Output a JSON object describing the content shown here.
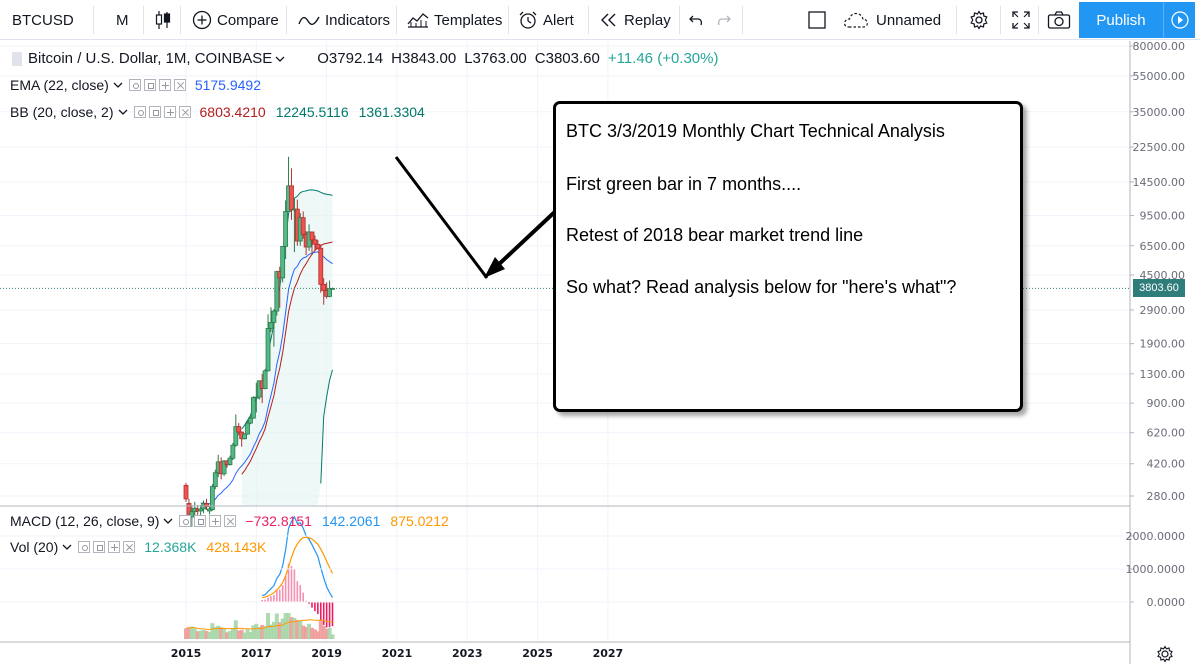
{
  "toolbar": {
    "symbol": "BTCUSD",
    "interval": "M",
    "compare_label": "Compare",
    "indicators_label": "Indicators",
    "templates_label": "Templates",
    "alert_label": "Alert",
    "replay_label": "Replay",
    "layout_name": "Unnamed",
    "publish_label": "Publish"
  },
  "legend": {
    "instrument": "Bitcoin / U.S. Dollar, 1M, COINBASE",
    "open": "O3792.14",
    "high": "H3843.00",
    "low": "L3763.00",
    "close": "C3803.60",
    "change": "+11.46 (+0.30%)",
    "ema": {
      "name": "EMA (22, close)",
      "value": "5175.9492",
      "color": "#2962ff"
    },
    "bb": {
      "name": "BB (20, close, 2)",
      "values": [
        "6803.4210",
        "12245.5116",
        "1361.3304"
      ],
      "colors": [
        "#b71c1c",
        "#00796b",
        "#00796b"
      ]
    },
    "macd": {
      "name": "MACD (12, 26, close, 9)",
      "values": [
        "−732.8151",
        "142.2061",
        "875.0212"
      ],
      "colors": [
        "#e91e63",
        "#2196f3",
        "#ff9800"
      ]
    },
    "vol": {
      "name": "Vol (20)",
      "values": [
        "12.368K",
        "428.143K"
      ],
      "colors": [
        "#26a69a",
        "#ff9800"
      ]
    }
  },
  "price_axis": {
    "labels": [
      "80000.00",
      "55000.00",
      "35000.00",
      "22500.00",
      "14500.00",
      "9500.00",
      "6500.00",
      "4500.00",
      "2900.00",
      "1900.00",
      "1300.00",
      "900.00",
      "620.00",
      "420.00",
      "280.00"
    ],
    "last_price": "3803.60"
  },
  "macd_axis": {
    "labels": [
      "2000.0000",
      "1000.0000",
      "0.0000"
    ]
  },
  "time_axis": {
    "labels": [
      "2015",
      "2017",
      "2019",
      "2021",
      "2023",
      "2025",
      "2027"
    ]
  },
  "annotation": {
    "lines": [
      "BTC 3/3/2019 Monthly Chart Technical Analysis",
      "First green bar in 7 months....",
      "Retest of 2018 bear market trend line",
      "So what?  Read analysis below for \"here's what\"?"
    ]
  },
  "colors": {
    "up": "#26a69a",
    "up_body": "#53b987",
    "down": "#ef5350",
    "accent": "#2196f3"
  },
  "chart_data": {
    "type": "candlestick",
    "title": "Bitcoin / U.S. Dollar, 1M, COINBASE",
    "x_range": [
      "2014-12",
      "2028-01"
    ],
    "y_scale": "log",
    "ylim": [
      230,
      95000
    ],
    "candles": [
      {
        "t": "2015-01",
        "o": 320,
        "h": 330,
        "l": 260,
        "c": 270
      },
      {
        "t": "2015-02",
        "o": 255,
        "h": 270,
        "l": 205,
        "c": 215
      },
      {
        "t": "2015-03",
        "o": 215,
        "h": 250,
        "l": 190,
        "c": 230
      },
      {
        "t": "2015-04",
        "o": 230,
        "h": 260,
        "l": 210,
        "c": 240
      },
      {
        "t": "2015-05",
        "o": 238,
        "h": 250,
        "l": 220,
        "c": 232
      },
      {
        "t": "2015-06",
        "o": 232,
        "h": 250,
        "l": 215,
        "c": 238
      },
      {
        "t": "2015-07",
        "o": 238,
        "h": 265,
        "l": 225,
        "c": 255
      },
      {
        "t": "2015-08",
        "o": 255,
        "h": 270,
        "l": 235,
        "c": 245
      },
      {
        "t": "2015-09",
        "o": 232,
        "h": 245,
        "l": 222,
        "c": 238
      },
      {
        "t": "2015-10",
        "o": 236,
        "h": 325,
        "l": 232,
        "c": 315
      },
      {
        "t": "2015-11",
        "o": 315,
        "h": 390,
        "l": 305,
        "c": 375
      },
      {
        "t": "2015-12",
        "o": 375,
        "h": 470,
        "l": 355,
        "c": 430
      },
      {
        "t": "2016-01",
        "o": 430,
        "h": 455,
        "l": 345,
        "c": 370
      },
      {
        "t": "2016-02",
        "o": 370,
        "h": 440,
        "l": 360,
        "c": 435
      },
      {
        "t": "2016-03",
        "o": 435,
        "h": 440,
        "l": 400,
        "c": 415
      },
      {
        "t": "2016-04",
        "o": 415,
        "h": 465,
        "l": 410,
        "c": 450
      },
      {
        "t": "2016-05",
        "o": 450,
        "h": 545,
        "l": 440,
        "c": 530
      },
      {
        "t": "2016-06",
        "o": 530,
        "h": 780,
        "l": 520,
        "c": 670
      },
      {
        "t": "2016-07",
        "o": 670,
        "h": 700,
        "l": 600,
        "c": 625
      },
      {
        "t": "2016-08",
        "o": 625,
        "h": 630,
        "l": 520,
        "c": 575
      },
      {
        "t": "2016-09",
        "o": 575,
        "h": 615,
        "l": 570,
        "c": 610
      },
      {
        "t": "2016-10",
        "o": 610,
        "h": 720,
        "l": 605,
        "c": 700
      },
      {
        "t": "2016-11",
        "o": 700,
        "h": 760,
        "l": 690,
        "c": 745
      },
      {
        "t": "2016-12",
        "o": 745,
        "h": 980,
        "l": 740,
        "c": 965
      },
      {
        "t": "2017-01",
        "o": 965,
        "h": 1160,
        "l": 800,
        "c": 970
      },
      {
        "t": "2017-02",
        "o": 970,
        "h": 1200,
        "l": 940,
        "c": 1190
      },
      {
        "t": "2017-03",
        "o": 1190,
        "h": 1300,
        "l": 900,
        "c": 1080
      },
      {
        "t": "2017-04",
        "o": 1080,
        "h": 1380,
        "l": 1070,
        "c": 1350
      },
      {
        "t": "2017-05",
        "o": 1350,
        "h": 2750,
        "l": 1340,
        "c": 2300
      },
      {
        "t": "2017-06",
        "o": 2300,
        "h": 3000,
        "l": 2200,
        "c": 2480
      },
      {
        "t": "2017-07",
        "o": 2480,
        "h": 2930,
        "l": 1830,
        "c": 2860
      },
      {
        "t": "2017-08",
        "o": 2860,
        "h": 4750,
        "l": 2700,
        "c": 4700
      },
      {
        "t": "2017-09",
        "o": 4700,
        "h": 5000,
        "l": 2980,
        "c": 4340
      },
      {
        "t": "2017-10",
        "o": 4340,
        "h": 6470,
        "l": 4100,
        "c": 6450
      },
      {
        "t": "2017-11",
        "o": 6450,
        "h": 11500,
        "l": 5500,
        "c": 10000
      },
      {
        "t": "2017-12",
        "o": 10000,
        "h": 19890,
        "l": 10000,
        "c": 13800
      },
      {
        "t": "2018-01",
        "o": 13800,
        "h": 17200,
        "l": 9000,
        "c": 10200
      },
      {
        "t": "2018-02",
        "o": 10200,
        "h": 11800,
        "l": 6000,
        "c": 10300
      },
      {
        "t": "2018-03",
        "o": 10300,
        "h": 11600,
        "l": 6500,
        "c": 6900
      },
      {
        "t": "2018-04",
        "o": 6900,
        "h": 9800,
        "l": 6500,
        "c": 9250
      },
      {
        "t": "2018-05",
        "o": 9250,
        "h": 10000,
        "l": 7100,
        "c": 7500
      },
      {
        "t": "2018-06",
        "o": 7500,
        "h": 7800,
        "l": 5780,
        "c": 6400
      },
      {
        "t": "2018-07",
        "o": 6400,
        "h": 8500,
        "l": 6100,
        "c": 7730
      },
      {
        "t": "2018-08",
        "o": 7730,
        "h": 7750,
        "l": 5900,
        "c": 7000
      },
      {
        "t": "2018-09",
        "o": 7000,
        "h": 7400,
        "l": 6100,
        "c": 6620
      },
      {
        "t": "2018-10",
        "o": 6620,
        "h": 7000,
        "l": 6200,
        "c": 6300
      },
      {
        "t": "2018-11",
        "o": 6300,
        "h": 6600,
        "l": 3600,
        "c": 4000
      },
      {
        "t": "2018-12",
        "o": 4000,
        "h": 4320,
        "l": 3100,
        "c": 3700
      },
      {
        "t": "2019-01",
        "o": 3700,
        "h": 4100,
        "l": 3350,
        "c": 3440
      },
      {
        "t": "2019-02",
        "o": 3440,
        "h": 4200,
        "l": 3400,
        "c": 3792
      },
      {
        "t": "2019-03",
        "o": 3792.14,
        "h": 3843.0,
        "l": 3763.0,
        "c": 3803.6
      }
    ]
  }
}
